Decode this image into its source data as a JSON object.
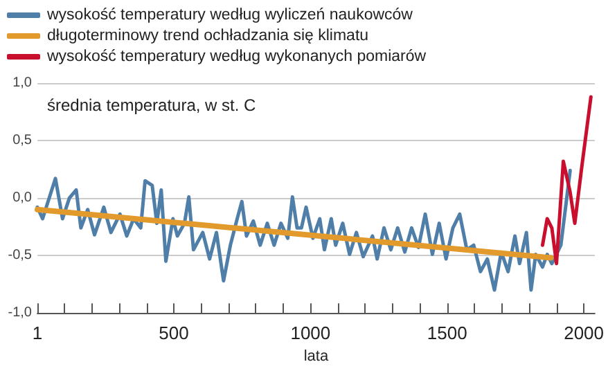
{
  "chart_data": {
    "type": "line",
    "ylabel": "średnia temperatura, w st. C",
    "xlabel": "lata",
    "series": [
      {
        "name": "wysokość temperatury według wyliczeń naukowców",
        "color": "#4f7fa8",
        "x": [
          1,
          20,
          67,
          93,
          118,
          143,
          160,
          185,
          210,
          244,
          270,
          303,
          328,
          353,
          379,
          395,
          421,
          438,
          454,
          471,
          497,
          513,
          539,
          555,
          572,
          606,
          631,
          656,
          682,
          707,
          732,
          749,
          766,
          791,
          816,
          842,
          867,
          892,
          917,
          934,
          951,
          967,
          984,
          1009,
          1034,
          1051,
          1076,
          1092,
          1118,
          1143,
          1168,
          1193,
          1227,
          1244,
          1269,
          1294,
          1319,
          1345,
          1370,
          1395,
          1420,
          1446,
          1471,
          1496,
          1521,
          1546,
          1572,
          1597,
          1622,
          1647,
          1673,
          1698,
          1723,
          1748,
          1765,
          1790,
          1807,
          1824,
          1849,
          1866,
          1883,
          1916,
          1950
        ],
        "values": [
          -0.08,
          -0.18,
          0.17,
          -0.18,
          0.0,
          0.07,
          -0.26,
          -0.1,
          -0.32,
          -0.08,
          -0.3,
          -0.14,
          -0.33,
          -0.18,
          -0.26,
          0.15,
          0.11,
          -0.22,
          0.07,
          -0.55,
          -0.18,
          -0.33,
          -0.22,
          0.01,
          -0.45,
          -0.3,
          -0.53,
          -0.3,
          -0.72,
          -0.41,
          -0.18,
          -0.03,
          -0.33,
          -0.2,
          -0.41,
          -0.22,
          -0.41,
          -0.22,
          -0.35,
          0.01,
          -0.26,
          -0.26,
          -0.08,
          -0.35,
          -0.18,
          -0.45,
          -0.18,
          -0.41,
          -0.22,
          -0.49,
          -0.3,
          -0.51,
          -0.33,
          -0.53,
          -0.26,
          -0.45,
          -0.26,
          -0.47,
          -0.26,
          -0.43,
          -0.14,
          -0.49,
          -0.22,
          -0.53,
          -0.26,
          -0.14,
          -0.45,
          -0.41,
          -0.64,
          -0.53,
          -0.8,
          -0.47,
          -0.64,
          -0.33,
          -0.57,
          -0.3,
          -0.8,
          -0.49,
          -0.6,
          -0.49,
          -0.57,
          -0.41,
          0.24
        ]
      },
      {
        "name": "długoterminowy trend ochładzania się klimatu",
        "color": "#e39a2c",
        "x": [
          1,
          1880
        ],
        "values": [
          -0.1,
          -0.52
        ]
      },
      {
        "name": "wysokość temperatury według wykonanych pomiarów",
        "color": "#c8102e",
        "x": [
          1849,
          1866,
          1883,
          1900,
          1925,
          1950,
          1967,
          1993,
          2026
        ],
        "values": [
          -0.41,
          -0.18,
          -0.26,
          -0.57,
          0.32,
          0.05,
          -0.22,
          0.28,
          0.88
        ]
      }
    ],
    "xlim": [
      1,
      2040
    ],
    "xticks": [
      1,
      {
        "value": 100,
        "label": null
      },
      {
        "value": 200,
        "label": null
      },
      {
        "value": 300,
        "label": null
      },
      {
        "value": 400,
        "label": null
      },
      500,
      {
        "value": 600,
        "label": null
      },
      {
        "value": 700,
        "label": null
      },
      {
        "value": 800,
        "label": null
      },
      {
        "value": 900,
        "label": null
      },
      1000,
      {
        "value": 1100,
        "label": null
      },
      {
        "value": 1200,
        "label": null
      },
      {
        "value": 1300,
        "label": null
      },
      {
        "value": 1400,
        "label": null
      },
      1500,
      {
        "value": 1600,
        "label": null
      },
      {
        "value": 1700,
        "label": null
      },
      {
        "value": 1800,
        "label": null
      },
      {
        "value": 1900,
        "label": null
      },
      2000
    ],
    "ylim": [
      -1,
      1
    ],
    "yticks": [
      {
        "value": -1,
        "label": "-1,0"
      },
      {
        "value": -0.5,
        "label": "-0,5"
      },
      {
        "value": 0,
        "label": "0,0"
      },
      {
        "value": 0.5,
        "label": "0,5"
      },
      {
        "value": 1,
        "label": "1,0"
      }
    ],
    "grid": "y",
    "legend": "top left",
    "marker": "none",
    "line_style": "solid"
  }
}
